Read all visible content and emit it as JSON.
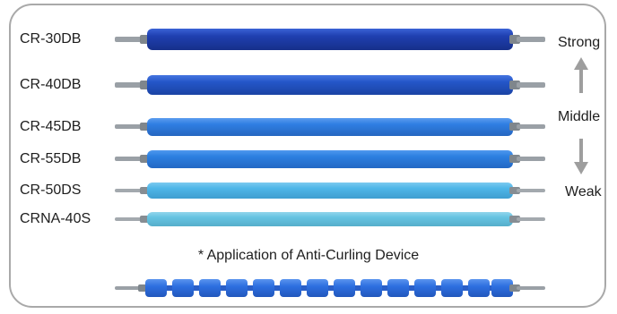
{
  "rollers": [
    {
      "label": "CR-30DB",
      "color": "#1f3fb0"
    },
    {
      "label": "CR-40DB",
      "color": "#2456c8"
    },
    {
      "label": "CR-45DB",
      "color": "#2f7ee2"
    },
    {
      "label": "CR-55DB",
      "color": "#2c7fe0"
    },
    {
      "label": "CR-50DS",
      "color": "#4fb6e8"
    },
    {
      "label": "CRNA-40S",
      "color": "#67c4e2"
    }
  ],
  "levels": {
    "strong": "Strong",
    "middle": "Middle",
    "weak": "Weak"
  },
  "caption": "* Application of Anti-Curling Device",
  "anti_curling_color": "#2d6fe0",
  "frame_color": "#a9a9a9",
  "shaft_color": "#9aa0a6",
  "arrow_color": "#9e9e9e"
}
